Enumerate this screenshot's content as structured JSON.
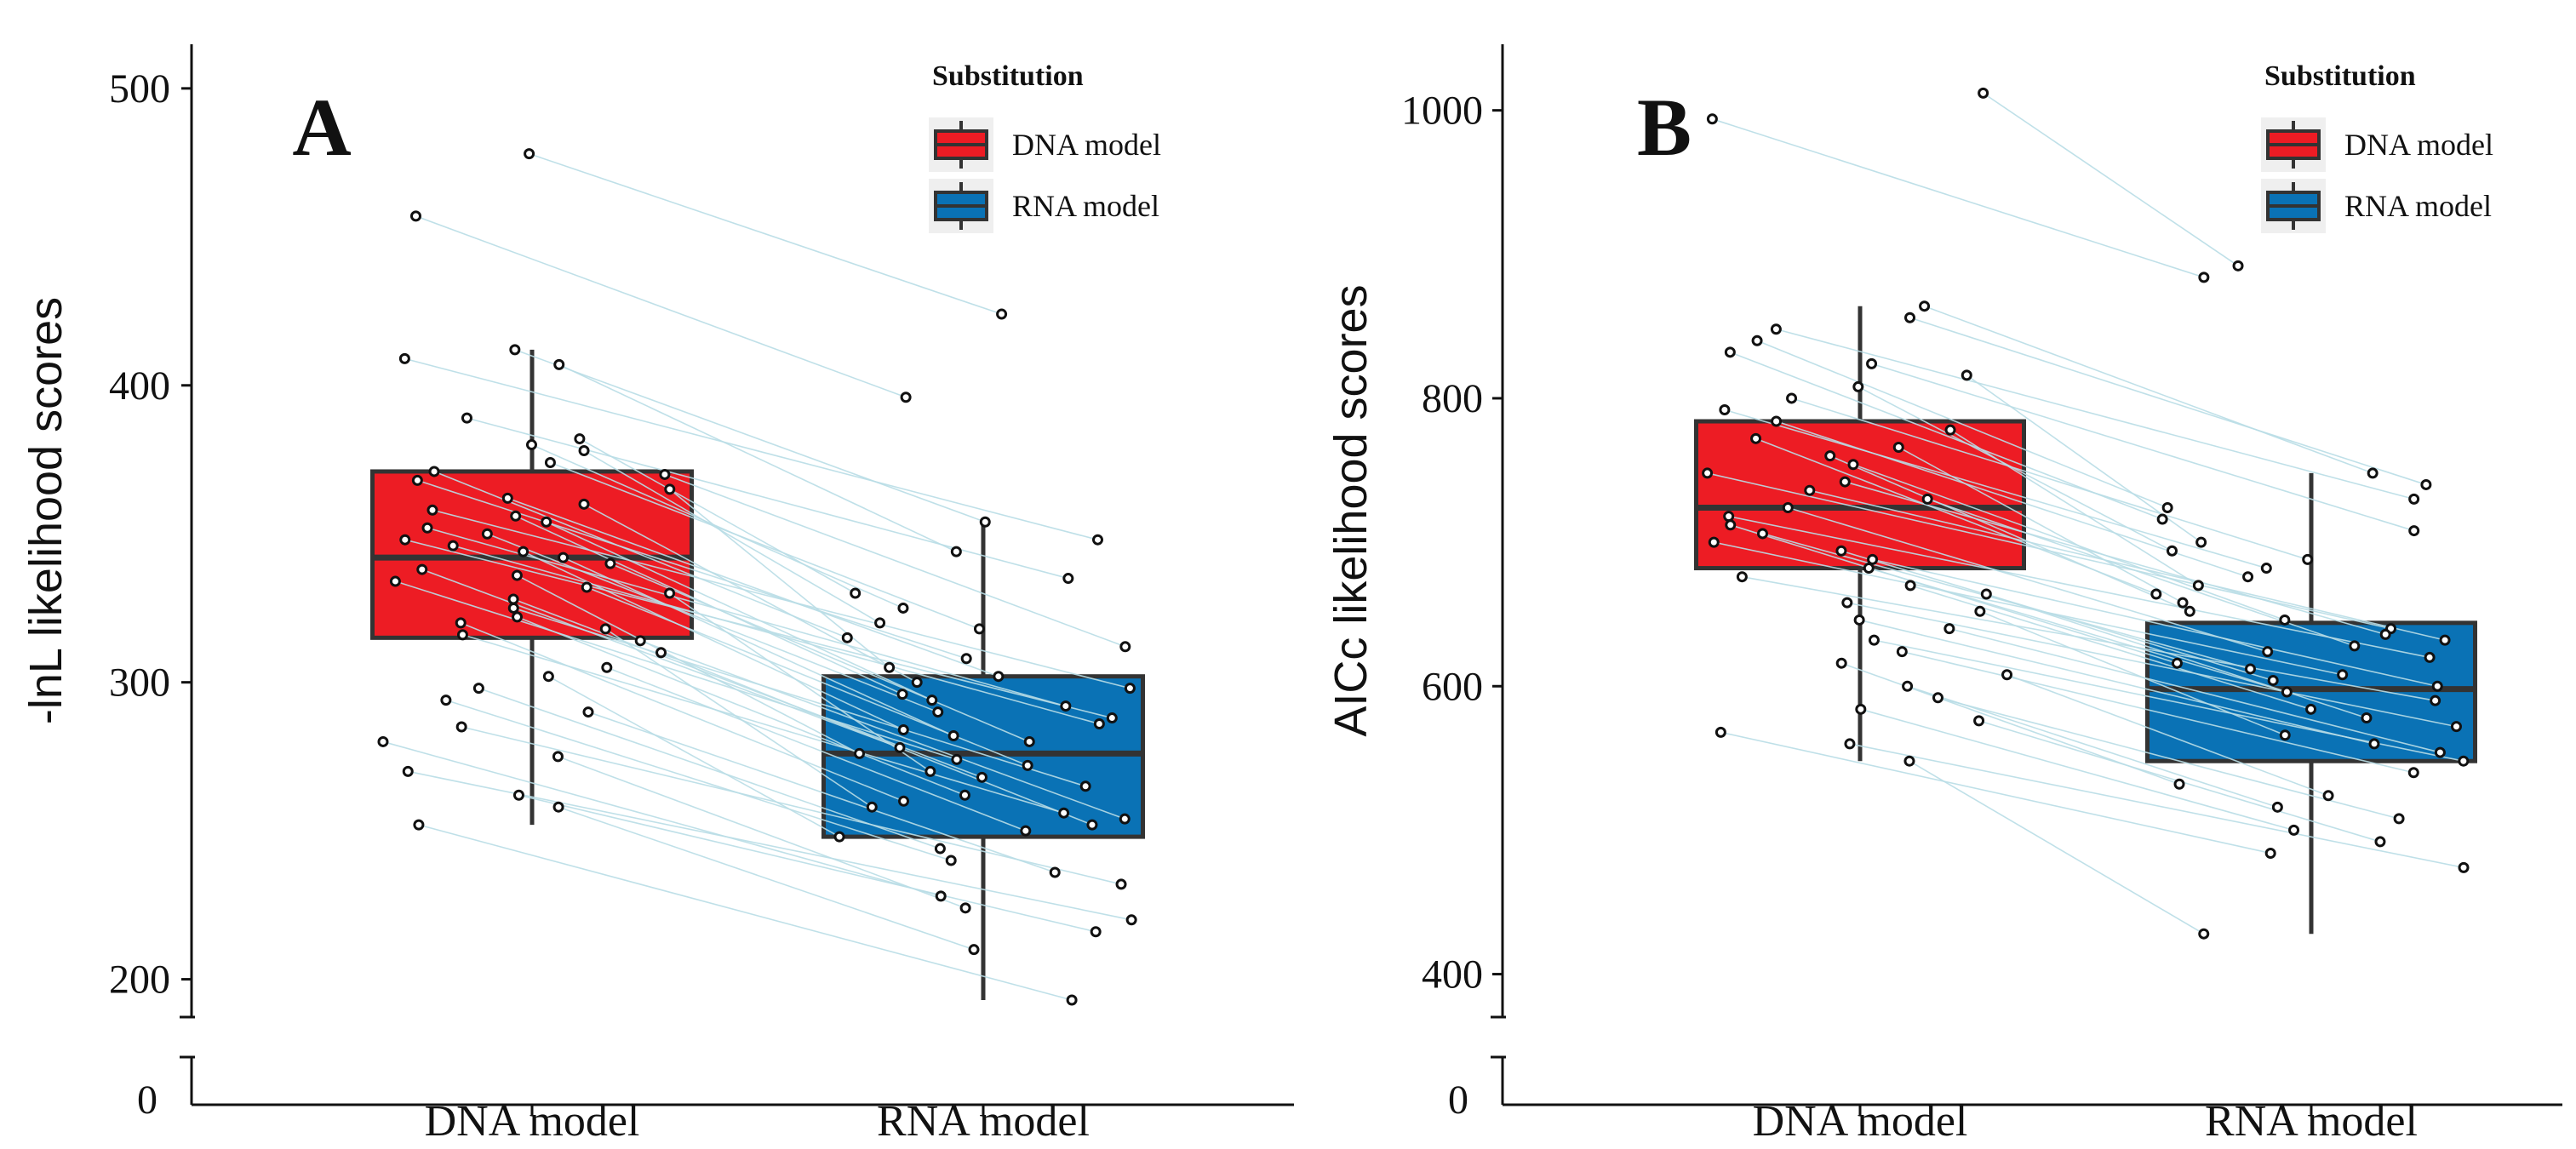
{
  "chart_data": [
    {
      "type": "box",
      "panel_label": "A",
      "ylabel": "-lnL likelihood scores",
      "xlabel": "",
      "categories": [
        "DNA model",
        "RNA model"
      ],
      "y_ticks": [
        200,
        300,
        400,
        500
      ],
      "axis_break_label": "0",
      "ylim": [
        193,
        512
      ],
      "legend": {
        "title": "Substitution",
        "position": "top-right",
        "entries": [
          {
            "label": "DNA model",
            "color": "#ed1c24"
          },
          {
            "label": "RNA model",
            "color": "#0a72b5"
          }
        ]
      },
      "boxes": [
        {
          "category": "DNA model",
          "min": 252,
          "q1": 315,
          "median": 342,
          "q3": 371,
          "max": 412,
          "color": "#ed1c24"
        },
        {
          "category": "RNA model",
          "min": 193,
          "q1": 248,
          "median": 276,
          "q3": 302,
          "max": 354,
          "color": "#0a72b5"
        }
      ],
      "pairs": [
        [
          478,
          424
        ],
        [
          457,
          396
        ],
        [
          412,
          354
        ],
        [
          409,
          348
        ],
        [
          407,
          344
        ],
        [
          389,
          335
        ],
        [
          382,
          330
        ],
        [
          380,
          325
        ],
        [
          378,
          320
        ],
        [
          374,
          318
        ],
        [
          371,
          315
        ],
        [
          370,
          312
        ],
        [
          368,
          308
        ],
        [
          365,
          305
        ],
        [
          362,
          302
        ],
        [
          360,
          300
        ],
        [
          358,
          298
        ],
        [
          356,
          296
        ],
        [
          354,
          294
        ],
        [
          352,
          292
        ],
        [
          350,
          290
        ],
        [
          348,
          288
        ],
        [
          346,
          286
        ],
        [
          344,
          284
        ],
        [
          342,
          282
        ],
        [
          340,
          280
        ],
        [
          338,
          278
        ],
        [
          336,
          276
        ],
        [
          334,
          274
        ],
        [
          332,
          272
        ],
        [
          330,
          270
        ],
        [
          328,
          268
        ],
        [
          325,
          265
        ],
        [
          322,
          262
        ],
        [
          320,
          260
        ],
        [
          318,
          258
        ],
        [
          316,
          256
        ],
        [
          314,
          254
        ],
        [
          310,
          252
        ],
        [
          305,
          250
        ],
        [
          302,
          248
        ],
        [
          298,
          244
        ],
        [
          294,
          240
        ],
        [
          290,
          236
        ],
        [
          285,
          232
        ],
        [
          280,
          228
        ],
        [
          275,
          224
        ],
        [
          270,
          220
        ],
        [
          262,
          216
        ],
        [
          258,
          210
        ],
        [
          252,
          193
        ]
      ]
    },
    {
      "type": "box",
      "panel_label": "B",
      "ylabel": "AICc  likelihood scores",
      "xlabel": "",
      "categories": [
        "DNA model",
        "RNA model"
      ],
      "y_ticks": [
        400,
        600,
        800,
        1000
      ],
      "axis_break_label": "0",
      "ylim": [
        382,
        1040
      ],
      "legend": {
        "title": "Substitution",
        "position": "top-right",
        "entries": [
          {
            "label": "DNA model",
            "color": "#ed1c24"
          },
          {
            "label": "RNA model",
            "color": "#0a72b5"
          }
        ]
      },
      "boxes": [
        {
          "category": "DNA model",
          "min": 548,
          "q1": 682,
          "median": 724,
          "q3": 784,
          "max": 864,
          "color": "#ed1c24"
        },
        {
          "category": "RNA model",
          "min": 428,
          "q1": 548,
          "median": 598,
          "q3": 644,
          "max": 748,
          "color": "#0a72b5"
        }
      ],
      "pairs": [
        [
          1012,
          892
        ],
        [
          994,
          884
        ],
        [
          864,
          748
        ],
        [
          856,
          740
        ],
        [
          848,
          730
        ],
        [
          840,
          724
        ],
        [
          832,
          716
        ],
        [
          824,
          708
        ],
        [
          816,
          700
        ],
        [
          808,
          694
        ],
        [
          800,
          688
        ],
        [
          792,
          682
        ],
        [
          784,
          676
        ],
        [
          778,
          670
        ],
        [
          772,
          664
        ],
        [
          766,
          658
        ],
        [
          760,
          652
        ],
        [
          754,
          646
        ],
        [
          748,
          640
        ],
        [
          742,
          636
        ],
        [
          736,
          632
        ],
        [
          730,
          628
        ],
        [
          724,
          624
        ],
        [
          718,
          620
        ],
        [
          712,
          616
        ],
        [
          706,
          612
        ],
        [
          700,
          608
        ],
        [
          694,
          604
        ],
        [
          688,
          600
        ],
        [
          682,
          596
        ],
        [
          676,
          590
        ],
        [
          670,
          584
        ],
        [
          664,
          578
        ],
        [
          658,
          572
        ],
        [
          652,
          566
        ],
        [
          646,
          560
        ],
        [
          640,
          554
        ],
        [
          632,
          548
        ],
        [
          624,
          540
        ],
        [
          616,
          532
        ],
        [
          608,
          524
        ],
        [
          600,
          516
        ],
        [
          592,
          508
        ],
        [
          584,
          500
        ],
        [
          576,
          492
        ],
        [
          568,
          484
        ],
        [
          560,
          474
        ],
        [
          548,
          428
        ]
      ]
    }
  ]
}
